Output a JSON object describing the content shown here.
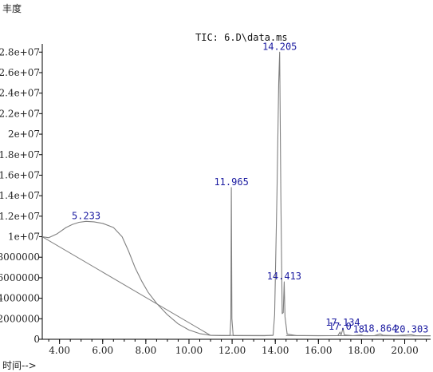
{
  "labels": {
    "ylabel": "丰度",
    "xlabel": "时间-->",
    "title": "TIC: 6.D\\data.ms"
  },
  "colors": {
    "trace": "#808080",
    "axis": "#000000",
    "peak_label": "#1a1aa0"
  },
  "chart_data": {
    "type": "line",
    "title": "TIC: 6.D\\data.ms",
    "xlabel": "时间-->",
    "ylabel": "丰度",
    "xlim": [
      3.2,
      21.2
    ],
    "ylim": [
      0,
      28800000
    ],
    "grid": false,
    "x_ticks": [
      {
        "v": 4,
        "label": "4.00"
      },
      {
        "v": 6,
        "label": "6.00"
      },
      {
        "v": 8,
        "label": "8.00"
      },
      {
        "v": 10,
        "label": "10.00"
      },
      {
        "v": 12,
        "label": "12.00"
      },
      {
        "v": 14,
        "label": "14.00"
      },
      {
        "v": 16,
        "label": "16.00"
      },
      {
        "v": 18,
        "label": "18.00"
      },
      {
        "v": 20,
        "label": "20.00"
      }
    ],
    "y_ticks": [
      {
        "v": 0,
        "label": "0"
      },
      {
        "v": 2000000,
        "label": "2000000"
      },
      {
        "v": 4000000,
        "label": "4000000"
      },
      {
        "v": 6000000,
        "label": "6000000"
      },
      {
        "v": 8000000,
        "label": "8000000"
      },
      {
        "v": 10000000,
        "label": "1e+07"
      },
      {
        "v": 12000000,
        "label": "1.2e+07"
      },
      {
        "v": 14000000,
        "label": "1.4e+07"
      },
      {
        "v": 16000000,
        "label": "1.6e+07"
      },
      {
        "v": 18000000,
        "label": "1.8e+07"
      },
      {
        "v": 20000000,
        "label": "2e+07"
      },
      {
        "v": 22000000,
        "label": "2.2e+07"
      },
      {
        "v": 24000000,
        "label": "2.4e+07"
      },
      {
        "v": 26000000,
        "label": "2.6e+07"
      },
      {
        "v": 28000000,
        "label": "2.8e+07"
      }
    ],
    "series": [
      {
        "points": [
          [
            3.2,
            10000000
          ],
          [
            3.5,
            9900000
          ],
          [
            3.9,
            10300000
          ],
          [
            4.3,
            10900000
          ],
          [
            4.6,
            11200000
          ],
          [
            4.9,
            11400000
          ],
          [
            5.233,
            11500000
          ],
          [
            5.6,
            11450000
          ],
          [
            6.0,
            11300000
          ],
          [
            6.5,
            10900000
          ],
          [
            6.9,
            10000000
          ],
          [
            7.2,
            8600000
          ],
          [
            7.5,
            7000000
          ],
          [
            7.8,
            5700000
          ],
          [
            8.1,
            4600000
          ],
          [
            8.5,
            3500000
          ],
          [
            9.0,
            2400000
          ],
          [
            9.5,
            1500000
          ],
          [
            10.0,
            900000
          ],
          [
            10.5,
            550000
          ],
          [
            11.0,
            380000
          ],
          [
            11.5,
            350000
          ],
          [
            11.9,
            360000
          ],
          [
            11.94,
            2000000
          ],
          [
            11.965,
            14800000
          ],
          [
            11.99,
            2000000
          ],
          [
            12.05,
            350000
          ],
          [
            13.5,
            340000
          ],
          [
            13.9,
            400000
          ],
          [
            13.97,
            2400000
          ],
          [
            14.08,
            14500000
          ],
          [
            14.16,
            25000000
          ],
          [
            14.205,
            28000000
          ],
          [
            14.26,
            14000000
          ],
          [
            14.32,
            2500000
          ],
          [
            14.37,
            2600000
          ],
          [
            14.413,
            5600000
          ],
          [
            14.45,
            2200000
          ],
          [
            14.55,
            500000
          ],
          [
            15.0,
            360000
          ],
          [
            16.0,
            340000
          ],
          [
            16.9,
            360000
          ],
          [
            17.0,
            700000
          ],
          [
            17.05,
            420000
          ],
          [
            17.12,
            900000
          ],
          [
            17.134,
            1100000
          ],
          [
            17.2,
            420000
          ],
          [
            17.6,
            350000
          ],
          [
            18.0,
            420000
          ],
          [
            18.1,
            340000
          ],
          [
            18.6,
            360000
          ],
          [
            18.864,
            520000
          ],
          [
            19.0,
            380000
          ],
          [
            19.6,
            360000
          ],
          [
            20.303,
            440000
          ],
          [
            20.5,
            360000
          ],
          [
            21.2,
            340000
          ]
        ]
      }
    ],
    "baselines": [
      [
        [
          3.2,
          10000000
        ],
        [
          11.0,
          380000
        ]
      ],
      [
        [
          11.0,
          380000
        ],
        [
          13.9,
          370000
        ]
      ],
      [
        [
          14.5,
          360000
        ],
        [
          21.2,
          330000
        ]
      ]
    ],
    "peak_labels": [
      {
        "text": "5.233",
        "x": 5.233,
        "y": 11500000
      },
      {
        "text": "11.965",
        "x": 11.965,
        "y": 14800000
      },
      {
        "text": "14.205",
        "x": 14.205,
        "y": 28000000
      },
      {
        "text": "14.413",
        "x": 14.413,
        "y": 5600000
      },
      {
        "text": "17.134",
        "x": 17.134,
        "y": 1100000
      },
      {
        "text": "17.0",
        "x": 17.0,
        "y": 700000
      },
      {
        "text": "18.",
        "x": 18.0,
        "y": 420000
      },
      {
        "text": "18.864",
        "x": 18.864,
        "y": 520000
      },
      {
        "text": "20.303",
        "x": 20.303,
        "y": 440000
      }
    ]
  }
}
